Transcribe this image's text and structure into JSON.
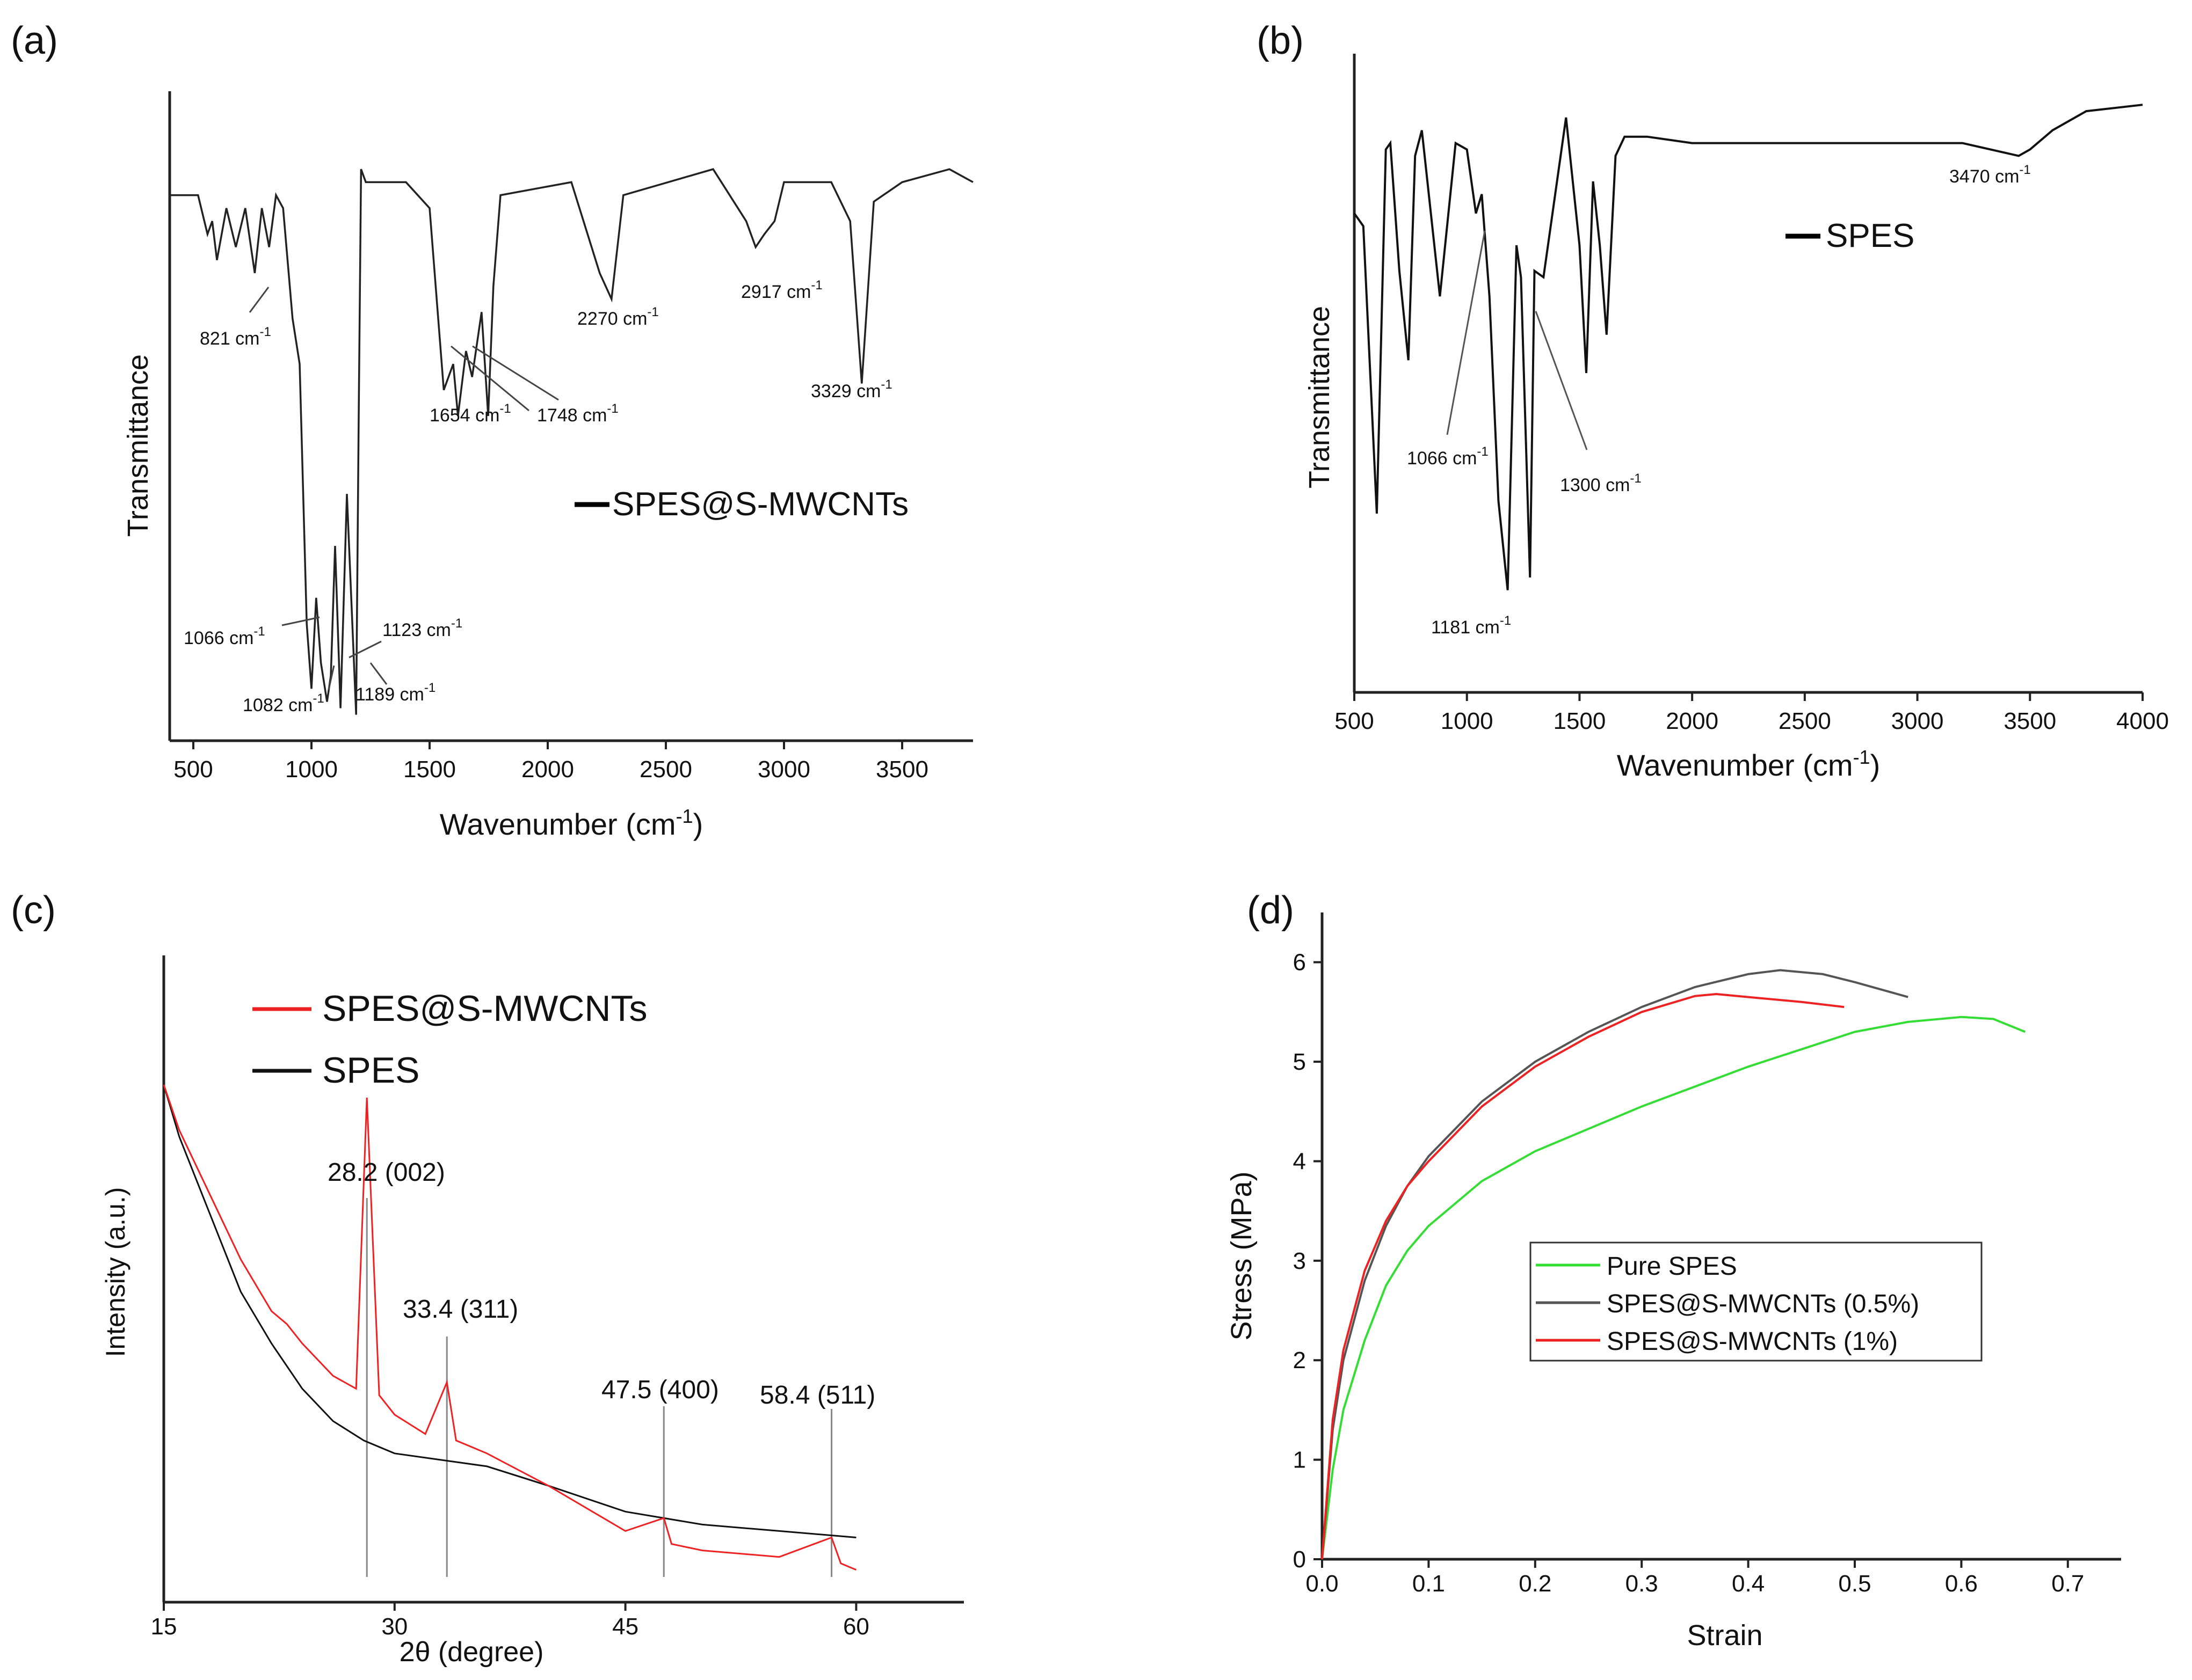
{
  "chart_data": [
    {
      "panel": "(a)",
      "type": "line",
      "title": "",
      "xlabel": "Wavenumber (cm",
      "xlabel_sup": "-1",
      "xlabel_end": ")",
      "ylabel": "Transmittance",
      "xlim": [
        400,
        3800
      ],
      "ylim": [
        0,
        100
      ],
      "xticks": [
        "500",
        "1000",
        "1500",
        "2000",
        "2500",
        "3000",
        "3500"
      ],
      "xtick_values": [
        500,
        1000,
        1500,
        2000,
        2500,
        3000,
        3500
      ],
      "legend": "SPES@S-MWCNTs",
      "legend_color": "#000000",
      "series": [
        {
          "name": "SPES@S-MWCNTs",
          "color": "#222222",
          "x": [
            400,
            520,
            560,
            580,
            600,
            640,
            680,
            720,
            760,
            790,
            821,
            850,
            880,
            920,
            950,
            980,
            1000,
            1020,
            1040,
            1066,
            1082,
            1100,
            1123,
            1150,
            1189,
            1200,
            1210,
            1230,
            1400,
            1500,
            1560,
            1600,
            1620,
            1654,
            1680,
            1720,
            1748,
            1770,
            1800,
            2100,
            2220,
            2270,
            2320,
            2700,
            2840,
            2880,
            2917,
            2960,
            3000,
            3200,
            3280,
            3329,
            3380,
            3500,
            3700,
            3800
          ],
          "y": [
            84,
            84,
            78,
            80,
            74,
            82,
            76,
            82,
            72,
            82,
            76,
            84,
            82,
            65,
            58,
            18,
            8,
            22,
            12,
            6,
            10,
            30,
            5,
            38,
            4,
            50,
            88,
            86,
            86,
            82,
            54,
            58,
            50,
            60,
            56,
            66,
            50,
            70,
            84,
            86,
            72,
            68,
            84,
            88,
            80,
            76,
            78,
            80,
            86,
            86,
            80,
            55,
            83,
            86,
            88,
            86
          ]
        }
      ],
      "annotations": [
        {
          "label": "821 cm",
          "sup": "-1"
        },
        {
          "label": "1654 cm",
          "sup": "-1"
        },
        {
          "label": "1748 cm",
          "sup": "-1"
        },
        {
          "label": "2270 cm",
          "sup": "-1"
        },
        {
          "label": "2917  cm",
          "sup": "-1"
        },
        {
          "label": "3329  cm",
          "sup": "-1"
        },
        {
          "label": "1066 cm",
          "sup": "-1"
        },
        {
          "label": "1123 cm",
          "sup": "-1"
        },
        {
          "label": "1082 cm",
          "sup": "-1"
        },
        {
          "label": "1189 cm",
          "sup": "-1"
        }
      ]
    },
    {
      "panel": "(b)",
      "type": "line",
      "title": "",
      "xlabel": "Wavenumber (cm",
      "xlabel_sup": "-1",
      "xlabel_end": ")",
      "ylabel": "Transmittance",
      "xlim": [
        500,
        4000
      ],
      "ylim": [
        0,
        100
      ],
      "xticks": [
        "500",
        "1000",
        "1500",
        "2000",
        "2500",
        "3000",
        "3500",
        "4000"
      ],
      "xtick_values": [
        500,
        1000,
        1500,
        2000,
        2500,
        3000,
        3500,
        4000
      ],
      "legend": "SPES",
      "legend_color": "#000000",
      "series": [
        {
          "name": "SPES",
          "color": "#111111",
          "x": [
            500,
            540,
            600,
            640,
            660,
            700,
            740,
            770,
            800,
            840,
            880,
            950,
            1000,
            1040,
            1066,
            1100,
            1140,
            1181,
            1220,
            1240,
            1280,
            1300,
            1340,
            1440,
            1500,
            1530,
            1560,
            1590,
            1620,
            1660,
            1700,
            1800,
            2000,
            2200,
            2500,
            2800,
            3000,
            3200,
            3450,
            3500,
            3600,
            3750,
            4000
          ],
          "y": [
            75,
            73,
            28,
            85,
            86,
            66,
            52,
            84,
            88,
            75,
            62,
            86,
            85,
            75,
            78,
            62,
            30,
            16,
            70,
            65,
            18,
            66,
            65,
            90,
            70,
            50,
            80,
            70,
            56,
            84,
            87,
            87,
            86,
            86,
            86,
            86,
            86,
            86,
            84,
            85,
            88,
            91,
            92
          ]
        }
      ],
      "annotations": [
        {
          "label": "3470 cm",
          "sup": "-1"
        },
        {
          "label": "1066 cm",
          "sup": "-1"
        },
        {
          "label": "1300 cm",
          "sup": "-1"
        },
        {
          "label": "1181 cm",
          "sup": "-1"
        }
      ]
    },
    {
      "panel": "(c)",
      "type": "line",
      "title": "",
      "xlabel": "2θ (degree)",
      "ylabel": "Intensity (a.u.)",
      "xlim": [
        15,
        67
      ],
      "ylim": [
        0,
        100
      ],
      "xticks": [
        "15",
        "30",
        "45",
        "60"
      ],
      "xtick_values": [
        15,
        30,
        45,
        60
      ],
      "legend": [
        {
          "name": "SPES@S-MWCNTs",
          "color": "#ee2222"
        },
        {
          "name": "SPES",
          "color": "#111111"
        }
      ],
      "series": [
        {
          "name": "SPES",
          "color": "#111111",
          "x": [
            15,
            16,
            18,
            20,
            22,
            24,
            26,
            28,
            30,
            33,
            36,
            40,
            45,
            50,
            55,
            60
          ],
          "y": [
            80,
            72,
            60,
            48,
            40,
            33,
            28,
            25,
            23,
            22,
            21,
            18,
            14,
            12,
            11,
            10
          ]
        },
        {
          "name": "SPES@S-MWCNTs",
          "color": "#ee2222",
          "x": [
            15,
            16,
            18,
            20,
            22,
            23,
            24,
            26,
            27.5,
            28.2,
            29,
            30,
            32,
            33.4,
            34,
            36,
            40,
            45,
            47.5,
            48,
            50,
            55,
            58.4,
            59,
            60
          ],
          "y": [
            80,
            73,
            63,
            53,
            45,
            43,
            40,
            35,
            33,
            78,
            32,
            29,
            26,
            34,
            25,
            23,
            18,
            11,
            13,
            9,
            8,
            7,
            10,
            6,
            5
          ]
        }
      ],
      "peaks": [
        {
          "x": 28.2,
          "label": "28.2 (002)"
        },
        {
          "x": 33.4,
          "label": "33.4 (311)"
        },
        {
          "x": 47.5,
          "label": "47.5 (400)"
        },
        {
          "x": 58.4,
          "label": "58.4 (511)"
        }
      ]
    },
    {
      "panel": "(d)",
      "type": "line",
      "title": "",
      "xlabel": "Strain",
      "ylabel": "Stress (MPa)",
      "xlim": [
        0,
        0.75
      ],
      "ylim": [
        0,
        6.5
      ],
      "xticks": [
        "0.0",
        "0.1",
        "0.2",
        "0.3",
        "0.4",
        "0.5",
        "0.6",
        "0.7"
      ],
      "xtick_values": [
        0,
        0.1,
        0.2,
        0.3,
        0.4,
        0.5,
        0.6,
        0.7
      ],
      "yticks": [
        "0",
        "1",
        "2",
        "3",
        "4",
        "5",
        "6"
      ],
      "ytick_values": [
        0,
        1,
        2,
        3,
        4,
        5,
        6
      ],
      "legend": [
        {
          "name": "Pure SPES",
          "color": "#33dd33"
        },
        {
          "name": "SPES@S-MWCNTs (0.5%)",
          "color": "#555555"
        },
        {
          "name": "SPES@S-MWCNTs (1%)",
          "color": "#ee2222"
        }
      ],
      "series": [
        {
          "name": "Pure SPES",
          "color": "#33dd33",
          "x": [
            0,
            0.01,
            0.02,
            0.04,
            0.06,
            0.08,
            0.1,
            0.15,
            0.2,
            0.3,
            0.4,
            0.5,
            0.55,
            0.6,
            0.63,
            0.66
          ],
          "y": [
            0,
            0.9,
            1.5,
            2.2,
            2.75,
            3.1,
            3.35,
            3.8,
            4.1,
            4.55,
            4.95,
            5.3,
            5.4,
            5.45,
            5.43,
            5.3
          ]
        },
        {
          "name": "SPES@S-MWCNTs (0.5%)",
          "color": "#555555",
          "x": [
            0,
            0.01,
            0.02,
            0.04,
            0.06,
            0.08,
            0.1,
            0.15,
            0.2,
            0.25,
            0.3,
            0.35,
            0.4,
            0.43,
            0.47,
            0.5,
            0.55
          ],
          "y": [
            0,
            1.3,
            2.0,
            2.8,
            3.35,
            3.75,
            4.05,
            4.6,
            5.0,
            5.3,
            5.55,
            5.75,
            5.88,
            5.92,
            5.88,
            5.8,
            5.65
          ]
        },
        {
          "name": "SPES@S-MWCNTs (1%)",
          "color": "#ee2222",
          "x": [
            0,
            0.01,
            0.02,
            0.04,
            0.06,
            0.08,
            0.1,
            0.15,
            0.2,
            0.25,
            0.3,
            0.35,
            0.37,
            0.4,
            0.45,
            0.49
          ],
          "y": [
            0,
            1.4,
            2.1,
            2.9,
            3.4,
            3.75,
            4.0,
            4.55,
            4.95,
            5.25,
            5.5,
            5.66,
            5.68,
            5.65,
            5.6,
            5.55
          ]
        }
      ]
    }
  ]
}
